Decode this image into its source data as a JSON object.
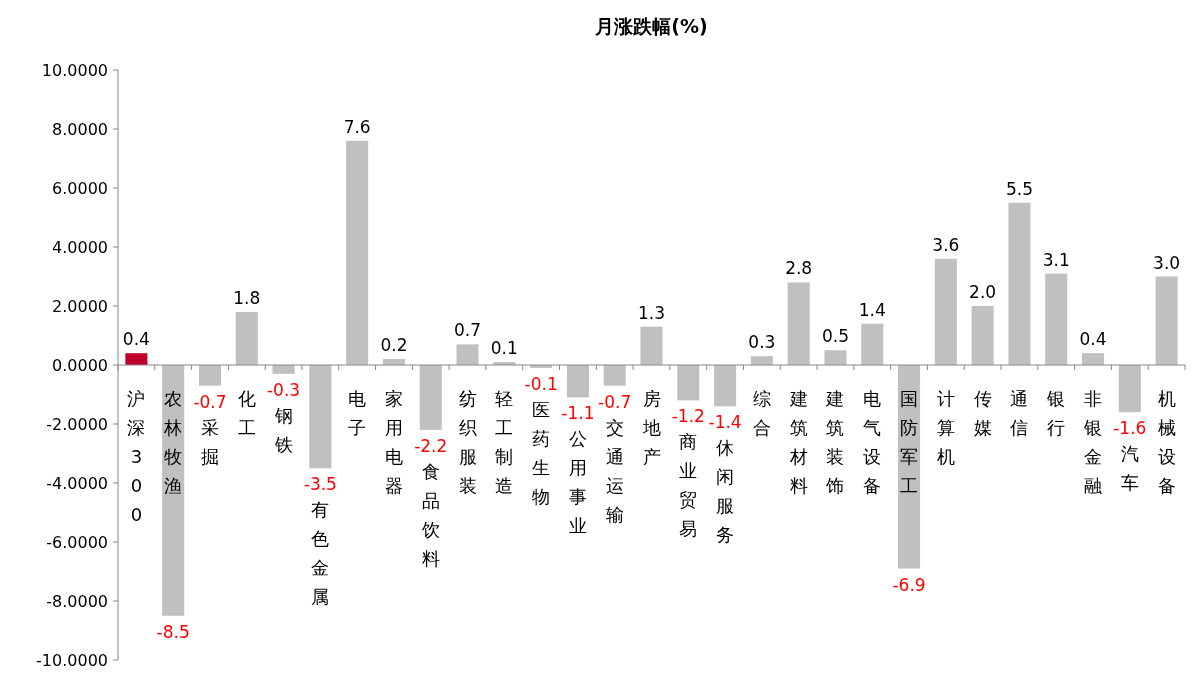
{
  "chart_data": {
    "type": "bar",
    "title": "月涨跌幅(%)",
    "categories": [
      "沪深300",
      "农林牧渔",
      "采掘",
      "化工",
      "钢铁",
      "有色金属",
      "电子",
      "家用电器",
      "食品饮料",
      "纺织服装",
      "轻工制造",
      "医药生物",
      "公用事业",
      "交通运输",
      "房地产",
      "商业贸易",
      "休闲服务",
      "综合",
      "建筑材料",
      "建筑装饰",
      "电气设备",
      "国防军工",
      "计算机",
      "传媒",
      "通信",
      "银行",
      "非银金融",
      "汽车",
      "机械设备"
    ],
    "values": [
      0.4,
      -8.5,
      -0.7,
      1.8,
      -0.3,
      -3.5,
      7.6,
      0.2,
      -2.2,
      0.7,
      0.1,
      -0.1,
      -1.1,
      -0.7,
      1.3,
      -1.2,
      -1.4,
      0.3,
      2.8,
      0.5,
      1.4,
      -6.9,
      3.6,
      2.0,
      5.5,
      3.1,
      0.4,
      -1.6,
      3.0
    ],
    "colors": [
      "#c0002a",
      "#c0c0c0",
      "#c0c0c0",
      "#c0c0c0",
      "#c0c0c0",
      "#c0c0c0",
      "#c0c0c0",
      "#c0c0c0",
      "#c0c0c0",
      "#c0c0c0",
      "#c0c0c0",
      "#c0c0c0",
      "#c0c0c0",
      "#c0c0c0",
      "#c0c0c0",
      "#c0c0c0",
      "#c0c0c0",
      "#c0c0c0",
      "#c0c0c0",
      "#c0c0c0",
      "#c0c0c0",
      "#c0c0c0",
      "#c0c0c0",
      "#c0c0c0",
      "#c0c0c0",
      "#c0c0c0",
      "#c0c0c0",
      "#c0c0c0",
      "#c0c0c0"
    ],
    "value_labels": [
      "0.4",
      "-8.5",
      "-0.7",
      "1.8",
      "-0.3",
      "-3.5",
      "7.6",
      "0.2",
      "-2.2",
      "0.7",
      "0.1",
      "-0.1",
      "-1.1",
      "-0.7",
      "1.3",
      "-1.2",
      "-1.4",
      "0.3",
      "2.8",
      "0.5",
      "1.4",
      "-6.9",
      "3.6",
      "2.0",
      "5.5",
      "3.1",
      "0.4",
      "-1.6",
      "3.0"
    ],
    "ylim": [
      -10,
      10
    ],
    "yticks": [
      {
        "value": -10,
        "label": "-10.0000"
      },
      {
        "value": -8,
        "label": "-8.0000"
      },
      {
        "value": -6,
        "label": "-6.0000"
      },
      {
        "value": -4,
        "label": "-4.0000"
      },
      {
        "value": -2,
        "label": "-2.0000"
      },
      {
        "value": 0,
        "label": "0.0000"
      },
      {
        "value": 2,
        "label": "2.0000"
      },
      {
        "value": 4,
        "label": "4.0000"
      },
      {
        "value": 6,
        "label": "6.0000"
      },
      {
        "value": 8,
        "label": "8.0000"
      },
      {
        "value": 10,
        "label": "10.0000"
      }
    ]
  }
}
